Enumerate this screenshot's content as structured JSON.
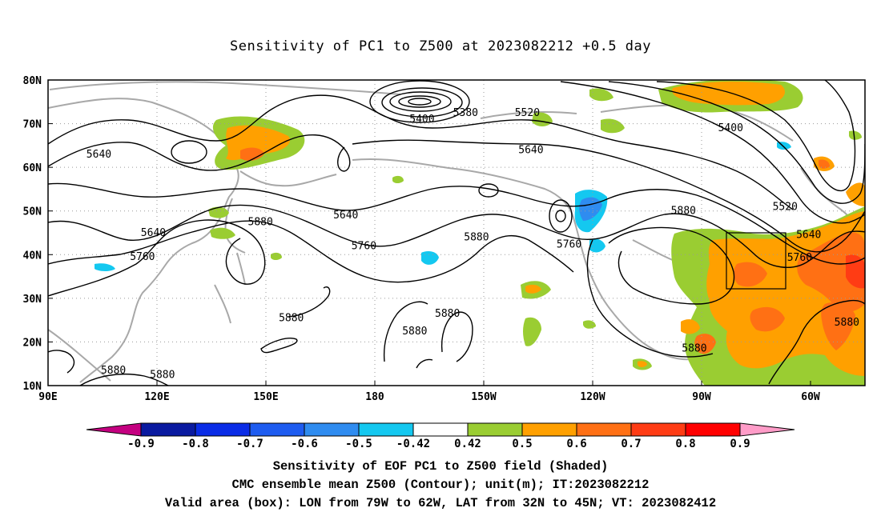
{
  "title": "Sensitivity of PC1 to Z500 at 2023082212 +0.5 day",
  "axes": {
    "lat_labels": [
      "80N",
      "70N",
      "60N",
      "50N",
      "40N",
      "30N",
      "20N",
      "10N"
    ],
    "lat_values": [
      80,
      70,
      60,
      50,
      40,
      30,
      20,
      10
    ],
    "lon_labels": [
      "90E",
      "120E",
      "150E",
      "180",
      "150W",
      "120W",
      "90W",
      "60W"
    ],
    "lon_values": [
      90,
      120,
      150,
      180,
      210,
      240,
      270,
      300
    ],
    "lon_range": [
      90,
      315
    ],
    "lat_range": [
      10,
      80
    ],
    "grid": "dotted"
  },
  "contour_labels": [
    {
      "text": "5380",
      "lon": 205,
      "lat": 72.5
    },
    {
      "text": "5400",
      "lon": 193,
      "lat": 71
    },
    {
      "text": "5520",
      "lon": 222,
      "lat": 72.5
    },
    {
      "text": "5400",
      "lon": 278,
      "lat": 69
    },
    {
      "text": "5640",
      "lon": 104,
      "lat": 63
    },
    {
      "text": "5640",
      "lon": 223,
      "lat": 64
    },
    {
      "text": "5520",
      "lon": 293,
      "lat": 51
    },
    {
      "text": "5640",
      "lon": 119,
      "lat": 45
    },
    {
      "text": "5880",
      "lon": 148.5,
      "lat": 47.5
    },
    {
      "text": "5640",
      "lon": 172,
      "lat": 49
    },
    {
      "text": "5880",
      "lon": 265,
      "lat": 50
    },
    {
      "text": "5760",
      "lon": 116,
      "lat": 39.5
    },
    {
      "text": "5760",
      "lon": 177,
      "lat": 42
    },
    {
      "text": "5880",
      "lon": 208,
      "lat": 44
    },
    {
      "text": "5760",
      "lon": 233.5,
      "lat": 42.3
    },
    {
      "text": "5640",
      "lon": 299.5,
      "lat": 44.5
    },
    {
      "text": "5760",
      "lon": 297,
      "lat": 39.3
    },
    {
      "text": "5880",
      "lon": 157,
      "lat": 25.5
    },
    {
      "text": "5880",
      "lon": 200,
      "lat": 26.5
    },
    {
      "text": "5880",
      "lon": 191,
      "lat": 22.5
    },
    {
      "text": "5880",
      "lon": 310,
      "lat": 24.5
    },
    {
      "text": "5880",
      "lon": 268,
      "lat": 18.5
    },
    {
      "text": "5880",
      "lon": 108,
      "lat": 13.5
    },
    {
      "text": "5880",
      "lon": 121.5,
      "lat": 12.5
    }
  ],
  "valid_box": {
    "lon_min": 281,
    "lon_max": 298,
    "lat_min": 32,
    "lat_max": 45
  },
  "colorbar": {
    "labels": [
      "-0.9",
      "-0.8",
      "-0.7",
      "-0.6",
      "-0.5",
      "-0.42",
      "0.42",
      "0.5",
      "0.6",
      "0.7",
      "0.8",
      "0.9"
    ],
    "colors": [
      "#c40080",
      "#0a1aa0",
      "#0a2ce6",
      "#1e5cf0",
      "#2f8cf0",
      "#14c8f0",
      "#ffffff",
      "#9acd32",
      "#ffa000",
      "#ff7014",
      "#ff3c14",
      "#ff0000",
      "#ff9cc8"
    ]
  },
  "shading_colors": {
    "green": "#9acd32",
    "orange": "#ffa000",
    "darkorange": "#ff7014",
    "red": "#ff3c14",
    "lightblue": "#14c8f0",
    "blue": "#2f8cf0"
  },
  "footer": {
    "line1": "Sensitivity of EOF PC1 to Z500 field (Shaded)",
    "line2": "CMC ensemble mean Z500 (Contour); unit(m); IT:2023082212",
    "line3": "Valid area (box): LON from 79W to 62W, LAT from 32N to 45N; VT: 2023082412"
  }
}
